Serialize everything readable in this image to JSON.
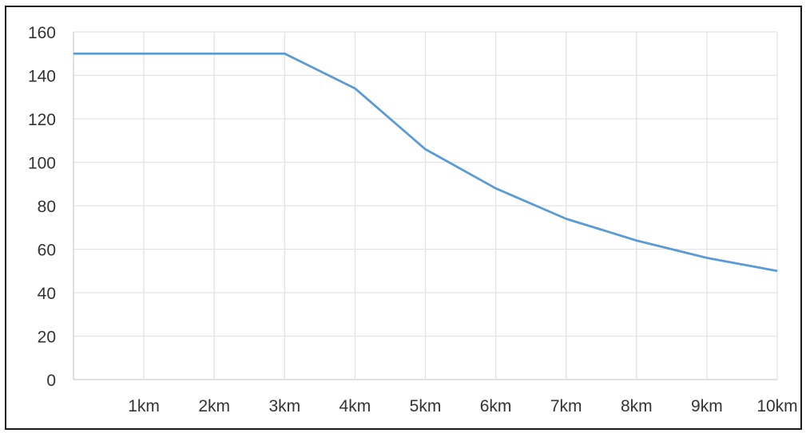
{
  "chart_data": {
    "type": "line",
    "title": "",
    "xlabel": "",
    "ylabel": "",
    "x_positions": [
      0,
      1,
      2,
      3,
      4,
      5,
      6,
      7,
      8,
      9,
      10
    ],
    "x_tick_labels": [
      "",
      "1km",
      "2km",
      "3km",
      "4km",
      "5km",
      "6km",
      "7km",
      "8km",
      "9km",
      "10km"
    ],
    "y_ticks": [
      0,
      20,
      40,
      60,
      80,
      100,
      120,
      140,
      160
    ],
    "xlim": [
      0,
      10
    ],
    "ylim": [
      0,
      160
    ],
    "grid": true,
    "legend": "none",
    "series": [
      {
        "values": [
          150,
          150,
          150,
          150,
          134,
          106,
          88,
          74,
          64,
          56,
          50
        ]
      }
    ],
    "colors": {
      "line": "#5b9bd5",
      "grid": "#e3e3e3",
      "axis": "#cfcfcf"
    }
  }
}
